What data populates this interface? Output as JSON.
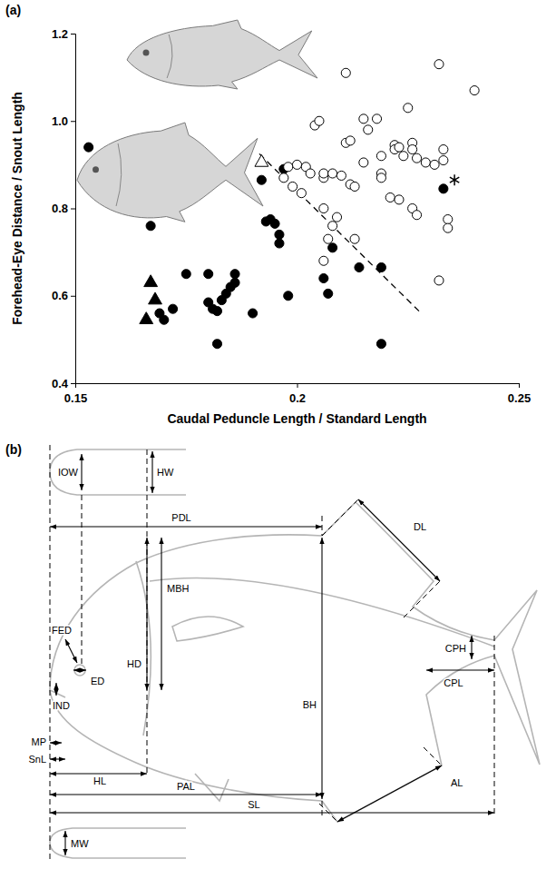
{
  "chart_data": {
    "type": "scatter",
    "title": "(a)",
    "x_label": "Caudal Peduncle Length / Standard Length",
    "y_label": "Forehead-Eye Distance / Snout Length",
    "xlim": [
      0.15,
      0.25
    ],
    "xticks": [
      0.15,
      0.2,
      0.25
    ],
    "ylim": [
      0.4,
      1.2
    ],
    "yticks": [
      0.4,
      0.6,
      0.8,
      {
        "value": 1,
        "label": "1.0"
      },
      1.2
    ],
    "grid": false,
    "series": [
      {
        "marker": "circle",
        "color": "#000000",
        "x": [
          0.153,
          0.167,
          0.169,
          0.17,
          0.172,
          0.175,
          0.18,
          0.18,
          0.181,
          0.182,
          0.182,
          0.183,
          0.184,
          0.185,
          0.186,
          0.186,
          0.19,
          0.192,
          0.193,
          0.194,
          0.195,
          0.196,
          0.196,
          0.197,
          0.198,
          0.206,
          0.207,
          0.208,
          0.214,
          0.219,
          0.219,
          0.233
        ],
        "values": [
          0.94,
          0.76,
          0.56,
          0.545,
          0.57,
          0.65,
          0.65,
          0.585,
          0.57,
          0.565,
          0.49,
          0.59,
          0.605,
          0.62,
          0.65,
          0.63,
          0.56,
          0.865,
          0.77,
          0.775,
          0.765,
          0.74,
          0.72,
          0.89,
          0.6,
          0.64,
          0.605,
          0.71,
          0.665,
          0.665,
          0.49,
          0.845
        ]
      },
      {
        "marker": "open-circle",
        "color": "#000000",
        "x": [
          0.232,
          0.211,
          0.24,
          0.225,
          0.215,
          0.218,
          0.204,
          0.205,
          0.211,
          0.212,
          0.216,
          0.222,
          0.222,
          0.223,
          0.224,
          0.226,
          0.226,
          0.227,
          0.229,
          0.231,
          0.233,
          0.233,
          0.219,
          0.198,
          0.2,
          0.202,
          0.203,
          0.197,
          0.199,
          0.201,
          0.206,
          0.206,
          0.208,
          0.21,
          0.212,
          0.213,
          0.215,
          0.219,
          0.219,
          0.221,
          0.226,
          0.227,
          0.223,
          0.206,
          0.208,
          0.209,
          0.207,
          0.206,
          0.213,
          0.234,
          0.234,
          0.232
        ],
        "values": [
          1.13,
          1.11,
          1.07,
          1.03,
          1.005,
          1.005,
          0.99,
          1.0,
          0.95,
          0.955,
          0.98,
          0.945,
          0.935,
          0.94,
          0.92,
          0.95,
          0.935,
          0.915,
          0.905,
          0.9,
          0.935,
          0.91,
          0.92,
          0.895,
          0.9,
          0.895,
          0.88,
          0.87,
          0.85,
          0.835,
          0.87,
          0.88,
          0.88,
          0.875,
          0.855,
          0.85,
          0.905,
          0.88,
          0.87,
          0.825,
          0.8,
          0.785,
          0.82,
          0.8,
          0.76,
          0.78,
          0.73,
          0.68,
          0.73,
          0.775,
          0.755,
          0.635
        ]
      },
      {
        "marker": "triangle",
        "color": "#000000",
        "x": [
          0.167,
          0.168,
          0.166
        ],
        "values": [
          0.63,
          0.59,
          0.545
        ]
      },
      {
        "marker": "open-triangle",
        "color": "#000000",
        "x": [
          0.192
        ],
        "values": [
          0.905
        ]
      },
      {
        "marker": "asterisk",
        "color": "#000000",
        "x": [
          0.2355
        ],
        "values": [
          0.865
        ]
      },
      {
        "type": "line",
        "line_style": "dashed",
        "color": "#000000",
        "x": [
          0.1915,
          0.228
        ],
        "values": [
          0.925,
          0.56
        ]
      }
    ]
  },
  "diagram": {
    "label": "(b)",
    "measurements": [
      "IOW",
      "HW",
      "PDL",
      "DL",
      "MBH",
      "HD",
      "FED",
      "ED",
      "IND",
      "BH",
      "CPH",
      "CPL",
      "MP",
      "SnL",
      "HL",
      "PAL",
      "AL",
      "SL",
      "MW"
    ]
  }
}
